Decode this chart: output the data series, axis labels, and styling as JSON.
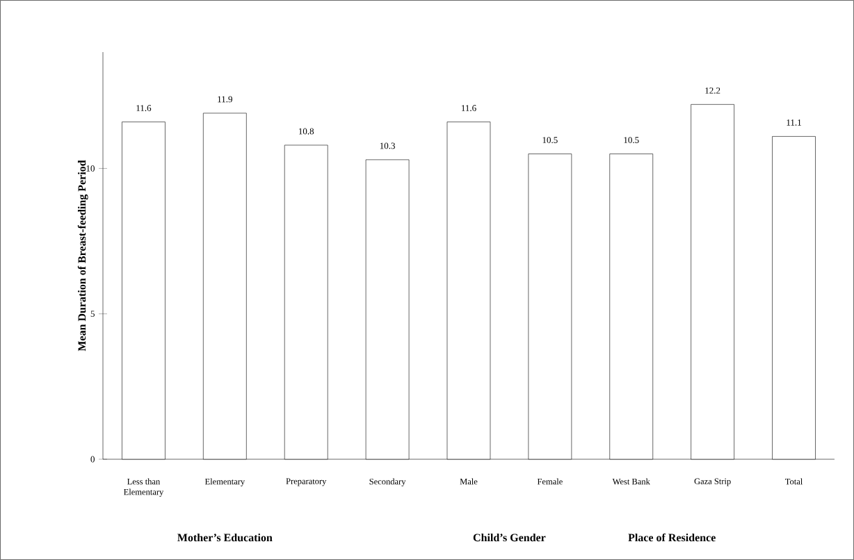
{
  "chart_data": {
    "type": "bar",
    "ylabel": "Mean Duration of Breast-feeding Period",
    "categories": [
      "Less than Elementary",
      "Elementary",
      "Preparatory",
      "Secondary",
      "Male",
      "Female",
      "West Bank",
      "Gaza Strip",
      "Total"
    ],
    "values": [
      11.6,
      11.9,
      10.8,
      10.3,
      11.6,
      10.5,
      10.5,
      12.2,
      11.1
    ],
    "color": "#ffffff",
    "ylim": [
      0,
      14
    ],
    "yticks": [
      0,
      5,
      10
    ],
    "data_labels": true,
    "annotations": [
      "Mother’s Education",
      "Child’s Gender",
      "Place of Residence"
    ]
  }
}
